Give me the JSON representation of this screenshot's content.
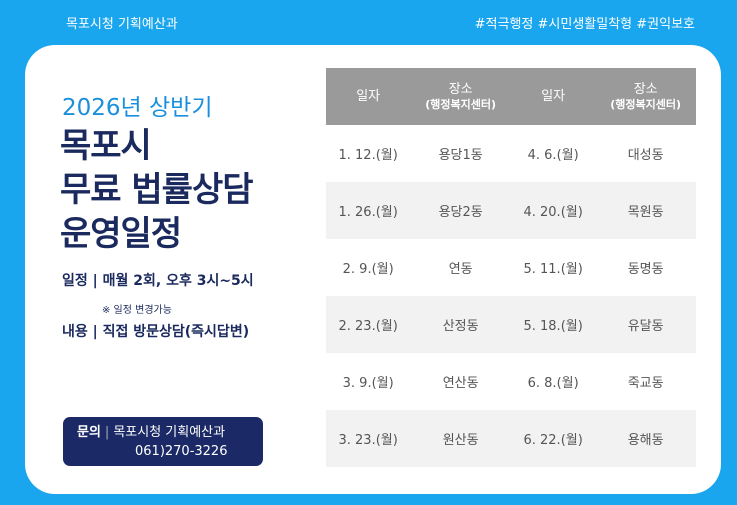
{
  "header": {
    "department": "목포시청 기획예산과",
    "hashtags": "#적극행정 #시민생활밀착형  #권익보호"
  },
  "left": {
    "subtitle": "2026년 상반기",
    "title_lines": [
      "목포시",
      "무료 법률상담",
      "운영일정"
    ],
    "schedule": "일정 | 매월 2회, 오후 3시~5시",
    "note": "※ 일정 변경가능",
    "content": "내용 | 직접 방문상담(즉시답변)"
  },
  "contact": {
    "label": "문의",
    "sep": "|",
    "dept": "목포시청 기획예산과",
    "phone": "061)270-3226"
  },
  "table": {
    "headers": [
      {
        "main": "일자",
        "sub": ""
      },
      {
        "main": "장소",
        "sub": "(행정복지센터)"
      },
      {
        "main": "일자",
        "sub": ""
      },
      {
        "main": "장소",
        "sub": "(행정복지센터)"
      }
    ],
    "rows": [
      [
        "1. 12.(월)",
        "용당1동",
        "4. 6.(월)",
        "대성동"
      ],
      [
        "1. 26.(월)",
        "용당2동",
        "4. 20.(월)",
        "목원동"
      ],
      [
        "2. 9.(월)",
        "연동",
        "5. 11.(월)",
        "동명동"
      ],
      [
        "2. 23.(월)",
        "산정동",
        "5. 18.(월)",
        "유달동"
      ],
      [
        "3. 9.(월)",
        "연산동",
        "6. 8.(월)",
        "죽교동"
      ],
      [
        "3. 23.(월)",
        "원산동",
        "6. 22.(월)",
        "용해동"
      ]
    ]
  },
  "colors": {
    "background": "#19a6ee",
    "navy": "#1b2a5e",
    "accent": "#1a8fdc",
    "header_gray": "#9a9a9a"
  }
}
